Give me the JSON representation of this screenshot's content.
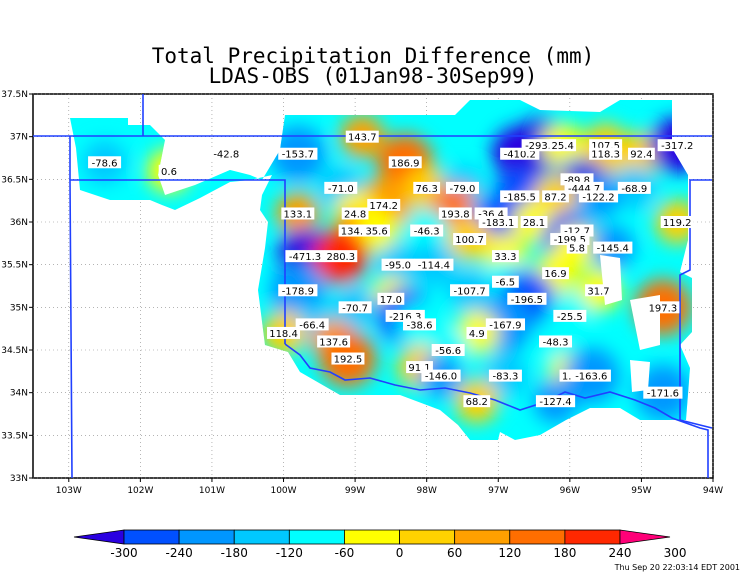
{
  "title": {
    "line1": "Total Precipitation Difference (mm)",
    "line2": "LDAS-OBS  (01Jan98-30Sep99)"
  },
  "footer": "Thu Sep 20 22:03:14 EDT 2001",
  "axes": {
    "lon_ticks": [
      "103W",
      "102W",
      "101W",
      "100W",
      "99W",
      "98W",
      "97W",
      "96W",
      "95W",
      "94W"
    ],
    "lat_ticks": [
      "37.5N",
      "37N",
      "36.5N",
      "36N",
      "35.5N",
      "35N",
      "34.5N",
      "34N",
      "33.5N",
      "33N"
    ]
  },
  "colorbar": {
    "labels": [
      "-300",
      "-240",
      "-180",
      "-120",
      "-60",
      "0",
      "60",
      "120",
      "180",
      "240",
      "300"
    ],
    "colors": [
      "#2a00e0",
      "#0050ff",
      "#0096ff",
      "#00c8ff",
      "#00ffff",
      "#ffff00",
      "#ffd200",
      "#ffa000",
      "#ff6e00",
      "#ff2800",
      "#ff0078"
    ]
  },
  "chart_data": {
    "type": "heatmap",
    "title": "Total Precipitation Difference (mm)",
    "xlim": [
      -103.5,
      -94.0
    ],
    "ylim": [
      33.0,
      37.5
    ],
    "annotations": [
      {
        "lon": -102.5,
        "lat": 36.7,
        "value": "-78.6"
      },
      {
        "lon": -101.6,
        "lat": 36.6,
        "value": "0.6"
      },
      {
        "lon": -100.8,
        "lat": 36.8,
        "value": "-42.8"
      },
      {
        "lon": -99.8,
        "lat": 36.8,
        "value": "-153.7"
      },
      {
        "lon": -98.9,
        "lat": 37.0,
        "value": "143.7"
      },
      {
        "lon": -98.3,
        "lat": 36.7,
        "value": "186.9"
      },
      {
        "lon": -99.2,
        "lat": 36.4,
        "value": "-71.0"
      },
      {
        "lon": -98.6,
        "lat": 36.2,
        "value": "174.2"
      },
      {
        "lon": -99.0,
        "lat": 36.1,
        "value": "24.8"
      },
      {
        "lon": -99.8,
        "lat": 36.1,
        "value": "133.1"
      },
      {
        "lon": -98.0,
        "lat": 36.4,
        "value": "76.3"
      },
      {
        "lon": -97.5,
        "lat": 36.4,
        "value": "-79.0"
      },
      {
        "lon": -96.7,
        "lat": 36.8,
        "value": "-410.2"
      },
      {
        "lon": -96.4,
        "lat": 36.9,
        "value": "-293.3"
      },
      {
        "lon": -96.1,
        "lat": 36.9,
        "value": "25.4"
      },
      {
        "lon": -95.5,
        "lat": 36.9,
        "value": "107.5"
      },
      {
        "lon": -95.5,
        "lat": 36.8,
        "value": "118.3"
      },
      {
        "lon": -95.0,
        "lat": 36.8,
        "value": "92.4"
      },
      {
        "lon": -94.5,
        "lat": 36.9,
        "value": "-317.2"
      },
      {
        "lon": -95.9,
        "lat": 36.5,
        "value": "-89.8"
      },
      {
        "lon": -95.8,
        "lat": 36.4,
        "value": "-444.7"
      },
      {
        "lon": -95.1,
        "lat": 36.4,
        "value": "-68.9"
      },
      {
        "lon": -96.7,
        "lat": 36.3,
        "value": "-185.5"
      },
      {
        "lon": -96.2,
        "lat": 36.3,
        "value": "87.2"
      },
      {
        "lon": -95.6,
        "lat": 36.3,
        "value": "-122.2"
      },
      {
        "lon": -97.6,
        "lat": 36.1,
        "value": "193.8"
      },
      {
        "lon": -97.1,
        "lat": 36.1,
        "value": "-36.4"
      },
      {
        "lon": -97.0,
        "lat": 36.0,
        "value": "-183.1"
      },
      {
        "lon": -96.5,
        "lat": 36.0,
        "value": "28.1"
      },
      {
        "lon": -95.9,
        "lat": 35.9,
        "value": "-12.7"
      },
      {
        "lon": -96.0,
        "lat": 35.8,
        "value": "-199.5"
      },
      {
        "lon": -95.9,
        "lat": 35.7,
        "value": "5.8"
      },
      {
        "lon": -95.4,
        "lat": 35.7,
        "value": "-145.4"
      },
      {
        "lon": -94.5,
        "lat": 36.0,
        "value": "119.2"
      },
      {
        "lon": -99.0,
        "lat": 35.9,
        "value": "134.6"
      },
      {
        "lon": -98.7,
        "lat": 35.9,
        "value": "35.6"
      },
      {
        "lon": -98.0,
        "lat": 35.9,
        "value": "-46.3"
      },
      {
        "lon": -97.4,
        "lat": 35.8,
        "value": "100.7"
      },
      {
        "lon": -96.9,
        "lat": 35.6,
        "value": "33.3"
      },
      {
        "lon": -99.7,
        "lat": 35.6,
        "value": "-471.3"
      },
      {
        "lon": -99.2,
        "lat": 35.6,
        "value": "280.3"
      },
      {
        "lon": -98.4,
        "lat": 35.5,
        "value": "-95.0"
      },
      {
        "lon": -97.9,
        "lat": 35.5,
        "value": "-114.4"
      },
      {
        "lon": -96.2,
        "lat": 35.4,
        "value": "16.9"
      },
      {
        "lon": -96.9,
        "lat": 35.3,
        "value": "-6.5"
      },
      {
        "lon": -95.6,
        "lat": 35.2,
        "value": "31.7"
      },
      {
        "lon": -99.8,
        "lat": 35.2,
        "value": "-178.9"
      },
      {
        "lon": -98.5,
        "lat": 35.1,
        "value": "17.0"
      },
      {
        "lon": -97.4,
        "lat": 35.2,
        "value": "-107.7"
      },
      {
        "lon": -96.6,
        "lat": 35.1,
        "value": "-196.5"
      },
      {
        "lon": -99.0,
        "lat": 35.0,
        "value": "-70.7"
      },
      {
        "lon": -98.3,
        "lat": 34.9,
        "value": "-216.3"
      },
      {
        "lon": -98.1,
        "lat": 34.8,
        "value": "-38.6"
      },
      {
        "lon": -99.6,
        "lat": 34.8,
        "value": "-66.4"
      },
      {
        "lon": -96.9,
        "lat": 34.8,
        "value": "-167.9"
      },
      {
        "lon": -96.0,
        "lat": 34.9,
        "value": "-25.5"
      },
      {
        "lon": -94.7,
        "lat": 35.0,
        "value": "197.3"
      },
      {
        "lon": -100.0,
        "lat": 34.7,
        "value": "118.4"
      },
      {
        "lon": -97.3,
        "lat": 34.7,
        "value": "4.9"
      },
      {
        "lon": -99.3,
        "lat": 34.6,
        "value": "137.6"
      },
      {
        "lon": -96.2,
        "lat": 34.6,
        "value": "-48.3"
      },
      {
        "lon": -97.7,
        "lat": 34.5,
        "value": "-56.6"
      },
      {
        "lon": -99.1,
        "lat": 34.4,
        "value": "192.5"
      },
      {
        "lon": -98.1,
        "lat": 34.3,
        "value": "91.1"
      },
      {
        "lon": -96.0,
        "lat": 34.2,
        "value": "1.3"
      },
      {
        "lon": -95.7,
        "lat": 34.2,
        "value": "-163.6"
      },
      {
        "lon": -97.8,
        "lat": 34.2,
        "value": "-146.0"
      },
      {
        "lon": -96.9,
        "lat": 34.2,
        "value": "-83.3"
      },
      {
        "lon": -94.7,
        "lat": 34.0,
        "value": "-171.6"
      },
      {
        "lon": -96.2,
        "lat": 33.9,
        "value": "-127.4"
      },
      {
        "lon": -97.3,
        "lat": 33.9,
        "value": "68.2"
      }
    ]
  }
}
